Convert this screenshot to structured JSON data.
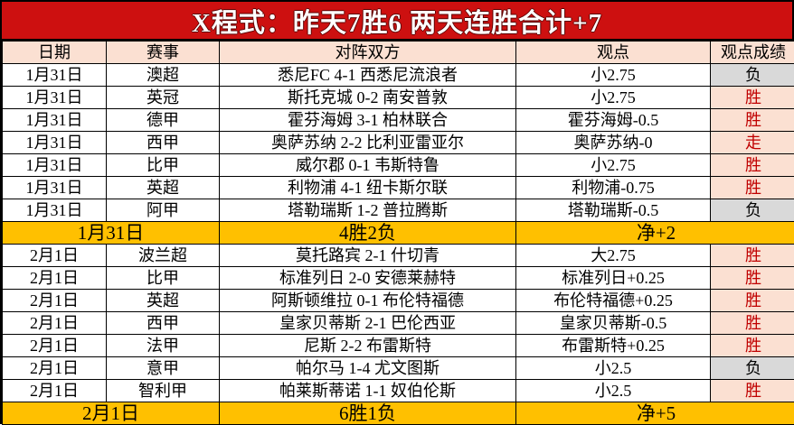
{
  "banner": {
    "title": "X程式：昨天7胜6 两天连胜合计+7"
  },
  "colors": {
    "banner_bg": "#cd1010",
    "banner_text": "#ffffff",
    "header_bg": "#fbe0d2",
    "win_bg": "#fbe0d2",
    "win_text": "#c00000",
    "loss_bg": "#d9d9d9",
    "summary_bg": "#ffc000",
    "border": "#000000"
  },
  "table": {
    "headers": [
      "日期",
      "赛事",
      "对阵双方",
      "观点",
      "观点成绩"
    ],
    "rows": [
      {
        "date": "1月31日",
        "league": "澳超",
        "match": "悉尼FC 4-1 西悉尼流浪者",
        "view": "小2.75",
        "result": "负",
        "result_type": "loss"
      },
      {
        "date": "1月31日",
        "league": "英冠",
        "match": "斯托克城 0-2 南安普敦",
        "view": "小2.75",
        "result": "胜",
        "result_type": "win"
      },
      {
        "date": "1月31日",
        "league": "德甲",
        "match": "霍芬海姆 3-1 柏林联合",
        "view": "霍芬海姆-0.5",
        "result": "胜",
        "result_type": "win"
      },
      {
        "date": "1月31日",
        "league": "西甲",
        "match": "奥萨苏纳 2-2 比利亚雷亚尔",
        "view": "奥萨苏纳-0",
        "result": "走",
        "result_type": "push"
      },
      {
        "date": "1月31日",
        "league": "比甲",
        "match": "威尔郡 0-1 韦斯特鲁",
        "view": "小2.75",
        "result": "胜",
        "result_type": "win"
      },
      {
        "date": "1月31日",
        "league": "英超",
        "match": "利物浦 4-1 纽卡斯尔联",
        "view": "利物浦-0.75",
        "result": "胜",
        "result_type": "win"
      },
      {
        "date": "1月31日",
        "league": "阿甲",
        "match": "塔勒瑞斯 1-2 普拉腾斯",
        "view": "塔勒瑞斯-0.5",
        "result": "负",
        "result_type": "loss"
      },
      {
        "date": "2月1日",
        "league": "波兰超",
        "match": "莫托路宾 2-1 什切青",
        "view": "大2.75",
        "result": "胜",
        "result_type": "win"
      },
      {
        "date": "2月1日",
        "league": "比甲",
        "match": "标准列日 2-0 安德莱赫特",
        "view": "标准列日+0.25",
        "result": "胜",
        "result_type": "win"
      },
      {
        "date": "2月1日",
        "league": "英超",
        "match": "阿斯顿维拉 0-1 布伦特福德",
        "view": "布伦特福德+0.25",
        "result": "胜",
        "result_type": "win"
      },
      {
        "date": "2月1日",
        "league": "西甲",
        "match": "皇家贝蒂斯 2-1 巴伦西亚",
        "view": "皇家贝蒂斯-0.5",
        "result": "胜",
        "result_type": "win"
      },
      {
        "date": "2月1日",
        "league": "法甲",
        "match": "尼斯 2-2 布雷斯特",
        "view": "布雷斯特+0.25",
        "result": "胜",
        "result_type": "win"
      },
      {
        "date": "2月1日",
        "league": "意甲",
        "match": "帕尔马 1-4 尤文图斯",
        "view": "小2.5",
        "result": "负",
        "result_type": "loss"
      },
      {
        "date": "2月1日",
        "league": "智利甲",
        "match": "帕莱斯蒂诺 1-1 奴伯伦斯",
        "view": "小2.5",
        "result": "胜",
        "result_type": "win"
      }
    ],
    "summaries": [
      {
        "date": "1月31日",
        "record": "4胜2负",
        "net": "净+2"
      },
      {
        "date": "2月1日",
        "record": "6胜1负",
        "net": "净+5"
      }
    ]
  }
}
